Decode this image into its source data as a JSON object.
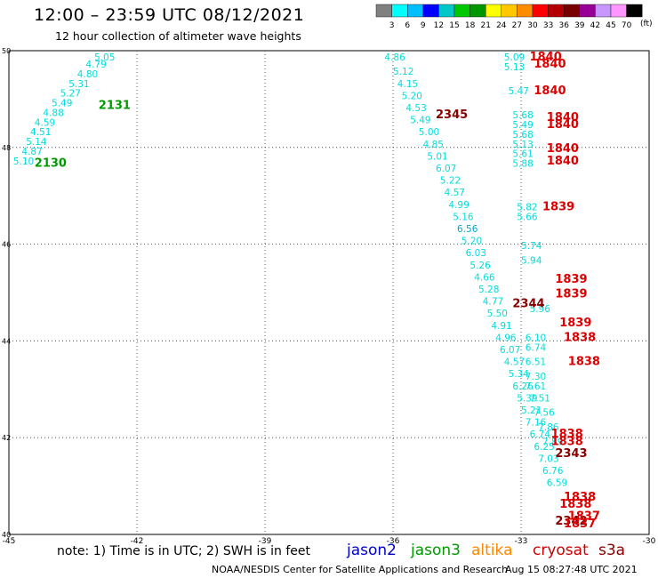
{
  "header": {
    "title": "12:00 – 23:59 UTC 08/12/2021",
    "subtitle": "12 hour collection of altimeter wave heights"
  },
  "footer": {
    "note": "note:  1) Time is in UTC;  2) SWH is in feet",
    "credit": "NOAA/NESDIS Center for Satellite Applications and Research",
    "timestamp": "Aug 15 08:27:48 UTC 2021"
  },
  "legend_satellites": [
    {
      "name": "jason2",
      "color": "#0000cc"
    },
    {
      "name": "jason3",
      "color": "#009900"
    },
    {
      "name": "altika",
      "color": "#ff8800"
    },
    {
      "name": "cryosat",
      "color": "#cc0000"
    },
    {
      "name": "s3a",
      "color": "#880000"
    }
  ],
  "color_scale": {
    "labels": [
      "3",
      "6",
      "9",
      "12",
      "15",
      "18",
      "21",
      "24",
      "27",
      "30",
      "33",
      "36",
      "39",
      "42",
      "45",
      "70"
    ],
    "unit": "(ft)",
    "colors": [
      "#808080",
      "#00ffff",
      "#00bfff",
      "#0000ff",
      "#00c8c8",
      "#00c800",
      "#009600",
      "#ffff00",
      "#ffc800",
      "#ff8c00",
      "#ff0000",
      "#b40000",
      "#780000",
      "#960096",
      "#c896ff",
      "#ff96ff",
      "#000000"
    ]
  },
  "chart_data": {
    "type": "scatter",
    "title": "12:00 – 23:59 UTC 08/12/2021",
    "xlim": [
      -45,
      -30
    ],
    "ylim": [
      40,
      50
    ],
    "x_ticks": [
      "-45",
      "-42",
      "-39",
      "-36",
      "-33",
      "-30"
    ],
    "y_ticks": [
      "40",
      "42",
      "44",
      "46",
      "48",
      "50"
    ],
    "grid": true,
    "swh_labels": [
      {
        "x": -43.0,
        "y": 49.8,
        "text": "5.05",
        "color": "#00dddd"
      },
      {
        "x": -43.2,
        "y": 49.65,
        "text": "4.79",
        "color": "#00dddd"
      },
      {
        "x": -43.4,
        "y": 49.45,
        "text": "4.80",
        "color": "#00dddd"
      },
      {
        "x": -43.6,
        "y": 49.25,
        "text": "5.31",
        "color": "#00dddd"
      },
      {
        "x": -43.8,
        "y": 49.05,
        "text": "5.27",
        "color": "#00dddd"
      },
      {
        "x": -44.0,
        "y": 48.85,
        "text": "5.49",
        "color": "#00dddd"
      },
      {
        "x": -44.2,
        "y": 48.65,
        "text": "4.88",
        "color": "#00dddd"
      },
      {
        "x": -44.4,
        "y": 48.45,
        "text": "4.59",
        "color": "#00dddd"
      },
      {
        "x": -44.5,
        "y": 48.25,
        "text": "4.51",
        "color": "#00dddd"
      },
      {
        "x": -44.6,
        "y": 48.05,
        "text": "5.14",
        "color": "#00dddd"
      },
      {
        "x": -44.7,
        "y": 47.85,
        "text": "4.87",
        "color": "#00dddd"
      },
      {
        "x": -44.9,
        "y": 47.65,
        "text": "5.10",
        "color": "#00dddd"
      },
      {
        "x": -36.2,
        "y": 49.8,
        "text": "4.86",
        "color": "#00dddd"
      },
      {
        "x": -36.0,
        "y": 49.5,
        "text": "5.12",
        "color": "#00dddd"
      },
      {
        "x": -35.9,
        "y": 49.25,
        "text": "4.15",
        "color": "#00dddd"
      },
      {
        "x": -35.8,
        "y": 49.0,
        "text": "5.20",
        "color": "#00dddd"
      },
      {
        "x": -35.7,
        "y": 48.75,
        "text": "4.53",
        "color": "#00dddd"
      },
      {
        "x": -35.6,
        "y": 48.5,
        "text": "5.49",
        "color": "#00dddd"
      },
      {
        "x": -35.4,
        "y": 48.25,
        "text": "5.00",
        "color": "#00dddd"
      },
      {
        "x": -35.3,
        "y": 48.0,
        "text": "4.85",
        "color": "#00dddd"
      },
      {
        "x": -35.2,
        "y": 47.75,
        "text": "5.01",
        "color": "#00dddd"
      },
      {
        "x": -35.0,
        "y": 47.5,
        "text": "6.07",
        "color": "#00dddd"
      },
      {
        "x": -34.9,
        "y": 47.25,
        "text": "5.22",
        "color": "#00dddd"
      },
      {
        "x": -34.8,
        "y": 47.0,
        "text": "4.57",
        "color": "#00dddd"
      },
      {
        "x": -34.7,
        "y": 46.75,
        "text": "4.99",
        "color": "#00dddd"
      },
      {
        "x": -34.6,
        "y": 46.5,
        "text": "5.16",
        "color": "#00dddd"
      },
      {
        "x": -34.5,
        "y": 46.25,
        "text": "6.56",
        "color": "#00aacc"
      },
      {
        "x": -34.4,
        "y": 46.0,
        "text": "5.20",
        "color": "#00dddd"
      },
      {
        "x": -34.3,
        "y": 45.75,
        "text": "6.03",
        "color": "#00dddd"
      },
      {
        "x": -34.2,
        "y": 45.5,
        "text": "5.26",
        "color": "#00dddd"
      },
      {
        "x": -34.1,
        "y": 45.25,
        "text": "4.66",
        "color": "#00dddd"
      },
      {
        "x": -34.0,
        "y": 45.0,
        "text": "5.28",
        "color": "#00dddd"
      },
      {
        "x": -33.9,
        "y": 44.75,
        "text": "4.77",
        "color": "#00dddd"
      },
      {
        "x": -33.8,
        "y": 44.5,
        "text": "5.50",
        "color": "#00dddd"
      },
      {
        "x": -33.7,
        "y": 44.25,
        "text": "4.91",
        "color": "#00dddd"
      },
      {
        "x": -33.6,
        "y": 44.0,
        "text": "4.96",
        "color": "#00dddd"
      },
      {
        "x": -33.5,
        "y": 43.75,
        "text": "6.07",
        "color": "#00dddd"
      },
      {
        "x": -33.4,
        "y": 43.5,
        "text": "4.57",
        "color": "#00dddd"
      },
      {
        "x": -33.3,
        "y": 43.25,
        "text": "5.34",
        "color": "#00dddd"
      },
      {
        "x": -33.2,
        "y": 43.0,
        "text": "6.26",
        "color": "#00dddd"
      },
      {
        "x": -33.1,
        "y": 42.75,
        "text": "5.39",
        "color": "#00dddd"
      },
      {
        "x": -33.0,
        "y": 42.5,
        "text": "5.21",
        "color": "#00dddd"
      },
      {
        "x": -32.9,
        "y": 42.25,
        "text": "7.16",
        "color": "#00dddd"
      },
      {
        "x": -32.8,
        "y": 42.0,
        "text": "6.74",
        "color": "#00dddd"
      },
      {
        "x": -32.7,
        "y": 41.75,
        "text": "6.25",
        "color": "#00dddd"
      },
      {
        "x": -32.6,
        "y": 41.5,
        "text": "7.03",
        "color": "#00dddd"
      },
      {
        "x": -32.5,
        "y": 41.25,
        "text": "6.76",
        "color": "#00dddd"
      },
      {
        "x": -32.4,
        "y": 41.0,
        "text": "6.59",
        "color": "#00dddd"
      },
      {
        "x": -33.4,
        "y": 49.8,
        "text": "5.09",
        "color": "#00dddd"
      },
      {
        "x": -33.4,
        "y": 49.6,
        "text": "5.13",
        "color": "#00dddd"
      },
      {
        "x": -33.3,
        "y": 49.1,
        "text": "5.47",
        "color": "#00dddd"
      },
      {
        "x": -33.2,
        "y": 48.6,
        "text": "5.68",
        "color": "#00dddd"
      },
      {
        "x": -33.2,
        "y": 48.4,
        "text": "5.49",
        "color": "#00dddd"
      },
      {
        "x": -33.2,
        "y": 48.2,
        "text": "5.68",
        "color": "#00dddd"
      },
      {
        "x": -33.2,
        "y": 48.0,
        "text": "5.13",
        "color": "#00dddd"
      },
      {
        "x": -33.2,
        "y": 47.8,
        "text": "5.61",
        "color": "#00dddd"
      },
      {
        "x": -33.2,
        "y": 47.6,
        "text": "5.88",
        "color": "#00dddd"
      },
      {
        "x": -33.1,
        "y": 46.7,
        "text": "5.82",
        "color": "#00dddd"
      },
      {
        "x": -33.1,
        "y": 46.5,
        "text": "5.66",
        "color": "#00dddd"
      },
      {
        "x": -33.0,
        "y": 45.9,
        "text": "5.74",
        "color": "#00dddd"
      },
      {
        "x": -33.0,
        "y": 45.6,
        "text": "5.94",
        "color": "#00dddd"
      },
      {
        "x": -32.8,
        "y": 44.6,
        "text": "5.96",
        "color": "#00dddd"
      },
      {
        "x": -32.9,
        "y": 44.0,
        "text": "6.10",
        "color": "#00dddd"
      },
      {
        "x": -32.9,
        "y": 43.8,
        "text": "6.74",
        "color": "#00dddd"
      },
      {
        "x": -32.9,
        "y": 43.5,
        "text": "6.51",
        "color": "#00dddd"
      },
      {
        "x": -32.9,
        "y": 43.2,
        "text": "7.30",
        "color": "#00dddd"
      },
      {
        "x": -32.9,
        "y": 43.0,
        "text": "7.61",
        "color": "#00dddd"
      },
      {
        "x": -32.8,
        "y": 42.75,
        "text": "7.51",
        "color": "#00dddd"
      },
      {
        "x": -32.7,
        "y": 42.45,
        "text": "7.56",
        "color": "#00dddd"
      },
      {
        "x": -32.6,
        "y": 42.15,
        "text": "7.86",
        "color": "#00dddd"
      },
      {
        "x": -32.5,
        "y": 41.85,
        "text": "7.89",
        "color": "#00dddd"
      }
    ],
    "time_labels": [
      {
        "x": -42.9,
        "y": 48.8,
        "text": "2131",
        "color": "#009900"
      },
      {
        "x": -44.4,
        "y": 47.6,
        "text": "2130",
        "color": "#009900"
      },
      {
        "x": -35.0,
        "y": 48.6,
        "text": "2345",
        "color": "#880000"
      },
      {
        "x": -33.2,
        "y": 44.7,
        "text": "2344",
        "color": "#880000"
      },
      {
        "x": -32.2,
        "y": 41.6,
        "text": "2343",
        "color": "#880000"
      },
      {
        "x": -32.2,
        "y": 40.2,
        "text": "2342",
        "color": "#880000"
      },
      {
        "x": -32.8,
        "y": 49.8,
        "text": "1840",
        "color": "#dd0000"
      },
      {
        "x": -32.7,
        "y": 49.65,
        "text": "1840",
        "color": "#dd0000"
      },
      {
        "x": -32.7,
        "y": 49.1,
        "text": "1840",
        "color": "#dd0000"
      },
      {
        "x": -32.4,
        "y": 48.55,
        "text": "1840",
        "color": "#dd0000"
      },
      {
        "x": -32.4,
        "y": 48.4,
        "text": "1840",
        "color": "#dd0000"
      },
      {
        "x": -32.4,
        "y": 47.9,
        "text": "1840",
        "color": "#dd0000"
      },
      {
        "x": -32.4,
        "y": 47.65,
        "text": "1840",
        "color": "#dd0000"
      },
      {
        "x": -32.5,
        "y": 46.7,
        "text": "1839",
        "color": "#dd0000"
      },
      {
        "x": -32.2,
        "y": 45.2,
        "text": "1839",
        "color": "#dd0000"
      },
      {
        "x": -32.2,
        "y": 44.9,
        "text": "1839",
        "color": "#dd0000"
      },
      {
        "x": -32.1,
        "y": 44.3,
        "text": "1839",
        "color": "#dd0000"
      },
      {
        "x": -32.0,
        "y": 44.0,
        "text": "1838",
        "color": "#dd0000"
      },
      {
        "x": -31.9,
        "y": 43.5,
        "text": "1838",
        "color": "#dd0000"
      },
      {
        "x": -32.3,
        "y": 42.0,
        "text": "1838",
        "color": "#dd0000"
      },
      {
        "x": -32.3,
        "y": 41.85,
        "text": "1838",
        "color": "#dd0000"
      },
      {
        "x": -32.0,
        "y": 40.7,
        "text": "1838",
        "color": "#dd0000"
      },
      {
        "x": -32.1,
        "y": 40.55,
        "text": "1838",
        "color": "#dd0000"
      },
      {
        "x": -31.9,
        "y": 40.3,
        "text": "1837",
        "color": "#dd0000"
      },
      {
        "x": -32.0,
        "y": 40.15,
        "text": "1837",
        "color": "#dd0000"
      }
    ]
  }
}
